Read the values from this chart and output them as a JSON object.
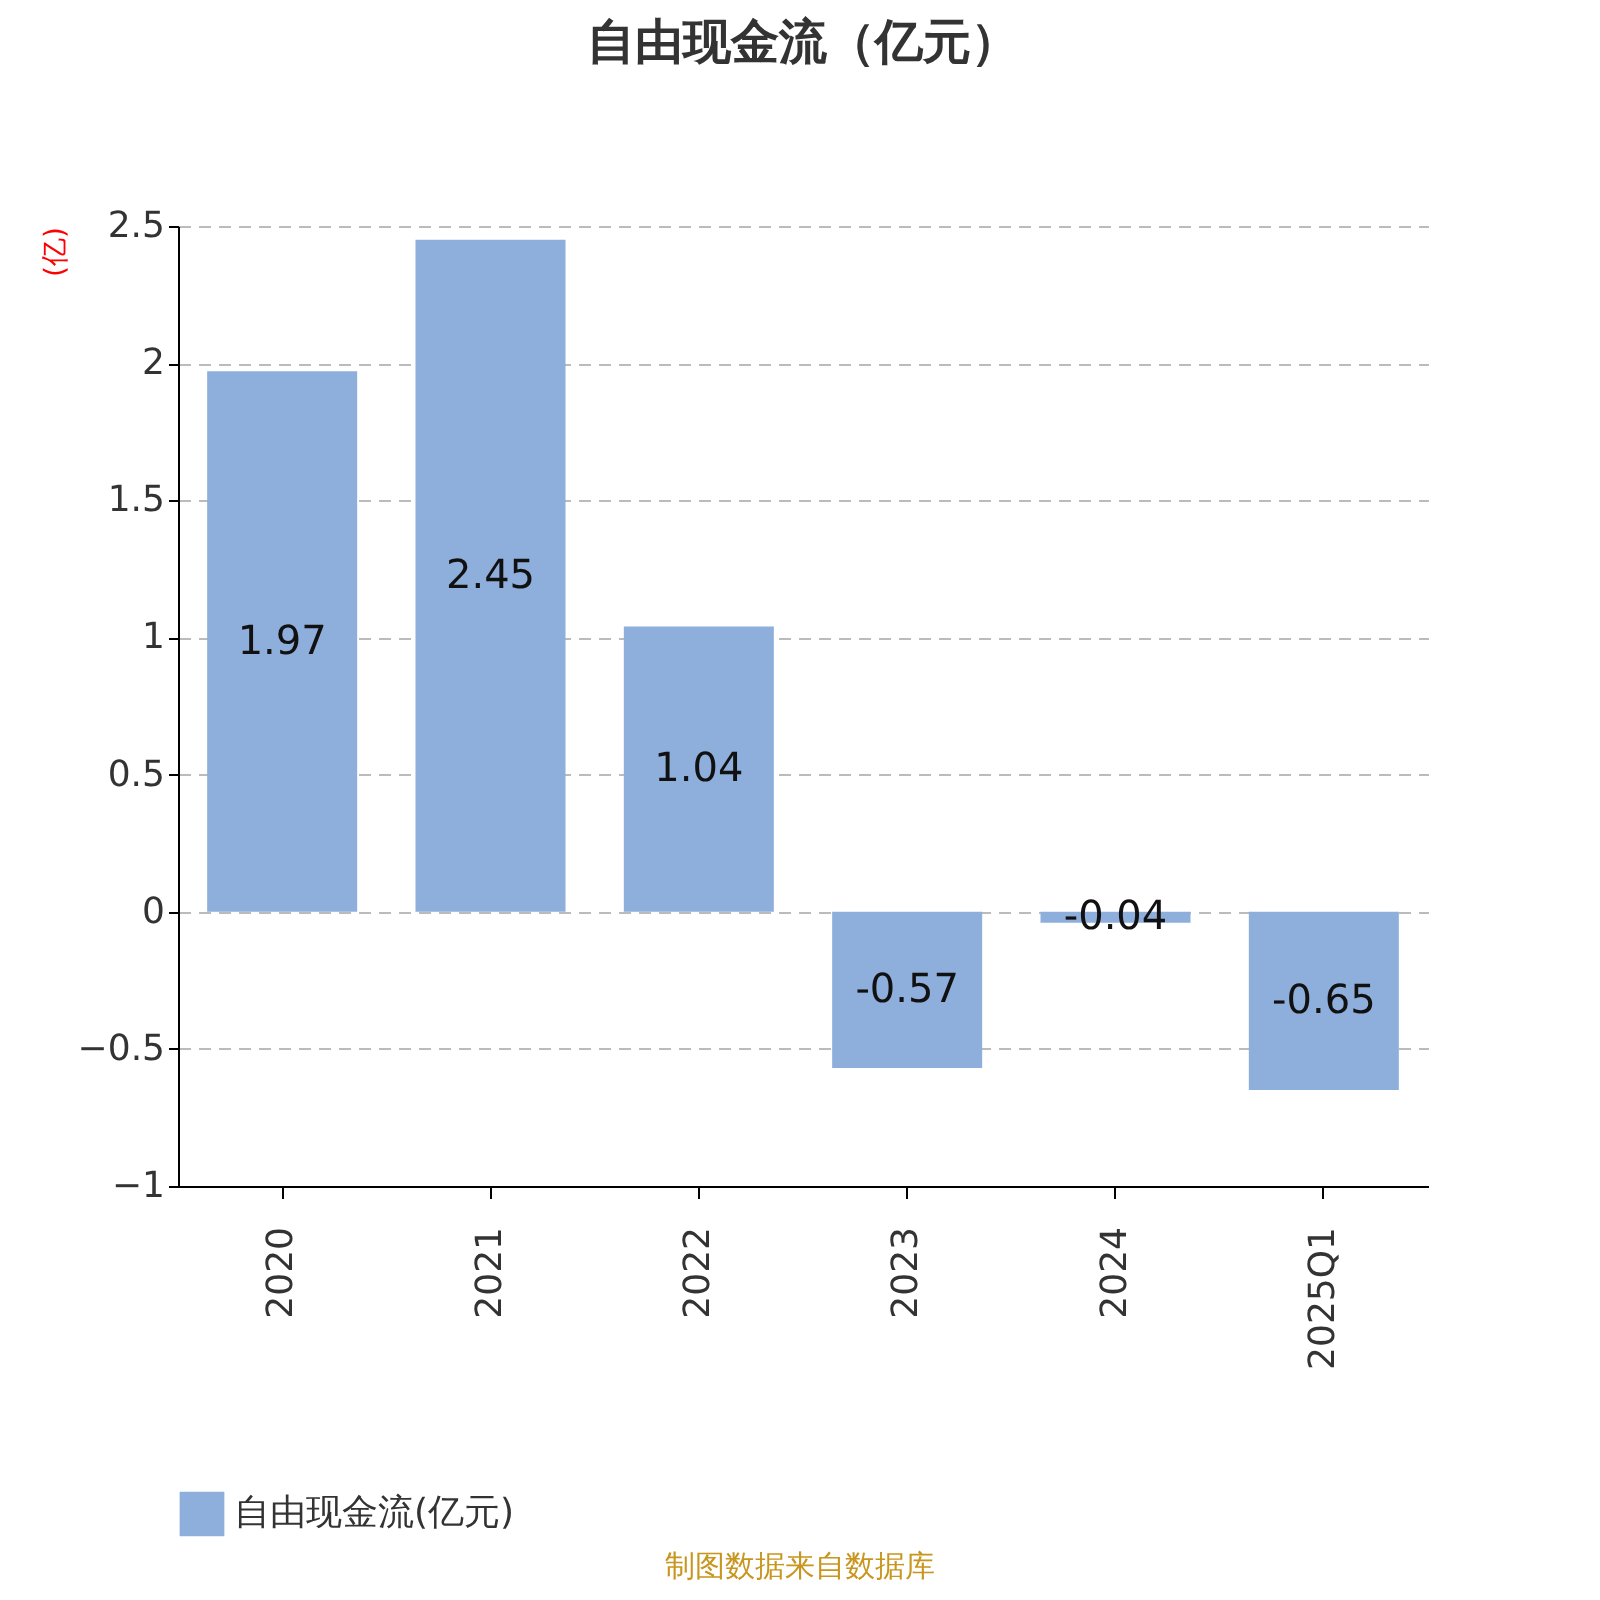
{
  "chart_data": {
    "type": "bar",
    "title": "自由现金流（亿元）",
    "ylabel": "(亿)",
    "categories": [
      "2020",
      "2021",
      "2022",
      "2023",
      "2024",
      "2025Q1"
    ],
    "series": [
      {
        "name": "自由现金流(亿元)",
        "color": "#8eaedb",
        "values": [
          1.97,
          2.45,
          1.04,
          -0.57,
          -0.04,
          -0.65
        ]
      }
    ],
    "ylim": [
      -1,
      2.5
    ],
    "yticks": [
      -1,
      -0.5,
      0,
      0.5,
      1,
      1.5,
      2,
      2.5
    ],
    "grid": "y",
    "legend": "bottom",
    "data_labels": true,
    "annotations": [
      "制图数据来自数据库"
    ]
  }
}
